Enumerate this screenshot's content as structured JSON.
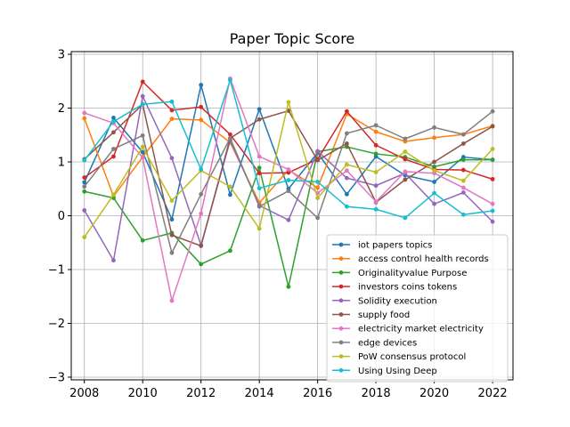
{
  "chart_data": {
    "type": "line",
    "title": "Paper Topic Score",
    "xlabel": "",
    "ylabel": "",
    "xlim": [
      2007.55,
      2022.7
    ],
    "ylim": [
      -3.05,
      3.05
    ],
    "xticks": [
      2008,
      2010,
      2012,
      2014,
      2016,
      2018,
      2020,
      2022
    ],
    "yticks": [
      -3,
      -2,
      -1,
      0,
      1,
      2,
      3
    ],
    "grid": true,
    "legend_position": "lower-right",
    "x": [
      2008,
      2009,
      2010,
      2011,
      2012,
      2013,
      2014,
      2015,
      2016,
      2017,
      2018,
      2019,
      2020,
      2021,
      2022
    ],
    "series": [
      {
        "name": "iot papers topics",
        "color": "#1f77b4",
        "values": [
          0.62,
          1.82,
          1.18,
          -0.07,
          2.43,
          0.39,
          1.98,
          0.5,
          1.17,
          0.4,
          1.1,
          0.75,
          0.63,
          1.09,
          1.04
        ]
      },
      {
        "name": "access control health records",
        "color": "#ff7f0e",
        "values": [
          1.81,
          0.36,
          1.09,
          1.8,
          1.78,
          1.36,
          0.24,
          0.85,
          0.52,
          1.89,
          1.56,
          1.38,
          1.45,
          1.51,
          1.67
        ]
      },
      {
        "name": "Originalityvalue Purpose",
        "color": "#2ca02c",
        "values": [
          0.45,
          0.33,
          -0.46,
          -0.32,
          -0.9,
          -0.65,
          0.89,
          -1.32,
          1.19,
          1.28,
          1.15,
          1.09,
          0.91,
          1.04,
          1.04
        ]
      },
      {
        "name": "investors coins tokens",
        "color": "#d62728",
        "values": [
          0.71,
          1.1,
          2.49,
          1.96,
          2.02,
          1.51,
          0.79,
          0.8,
          1.05,
          1.94,
          1.31,
          1.05,
          0.86,
          0.85,
          0.68
        ]
      },
      {
        "name": "Solidity execution",
        "color": "#9467bd",
        "values": [
          0.1,
          -0.83,
          2.22,
          1.07,
          -0.55,
          1.4,
          0.19,
          -0.08,
          1.2,
          0.7,
          0.56,
          0.79,
          0.22,
          0.43,
          -0.11
        ]
      },
      {
        "name": "supply food",
        "color": "#8c564b",
        "values": [
          1.05,
          1.55,
          2.07,
          -0.36,
          -0.56,
          1.44,
          1.79,
          1.95,
          1.03,
          1.34,
          0.25,
          0.67,
          1.0,
          1.34,
          1.66
        ]
      },
      {
        "name": "electricity market electricity",
        "color": "#e377c2",
        "values": [
          1.91,
          1.72,
          1.08,
          -1.58,
          0.04,
          2.55,
          1.1,
          0.86,
          0.42,
          0.84,
          0.26,
          0.82,
          0.79,
          0.52,
          0.22
        ]
      },
      {
        "name": "edge devices",
        "color": "#7f7f7f",
        "values": [
          0.54,
          1.24,
          1.49,
          -0.69,
          0.4,
          1.44,
          0.17,
          0.46,
          -0.04,
          1.53,
          1.68,
          1.43,
          1.64,
          1.51,
          1.94
        ]
      },
      {
        "name": "PoW consensus protocol",
        "color": "#bcbd22",
        "values": [
          -0.4,
          0.39,
          1.28,
          0.28,
          0.84,
          0.54,
          -0.24,
          2.11,
          0.33,
          0.95,
          0.81,
          1.19,
          0.84,
          0.65,
          1.24
        ]
      },
      {
        "name": "Using Using Deep",
        "color": "#17becf",
        "values": [
          1.03,
          1.75,
          2.07,
          2.12,
          0.86,
          2.52,
          0.51,
          0.66,
          0.63,
          0.17,
          0.12,
          -0.04,
          0.42,
          0.02,
          0.09
        ]
      }
    ]
  }
}
